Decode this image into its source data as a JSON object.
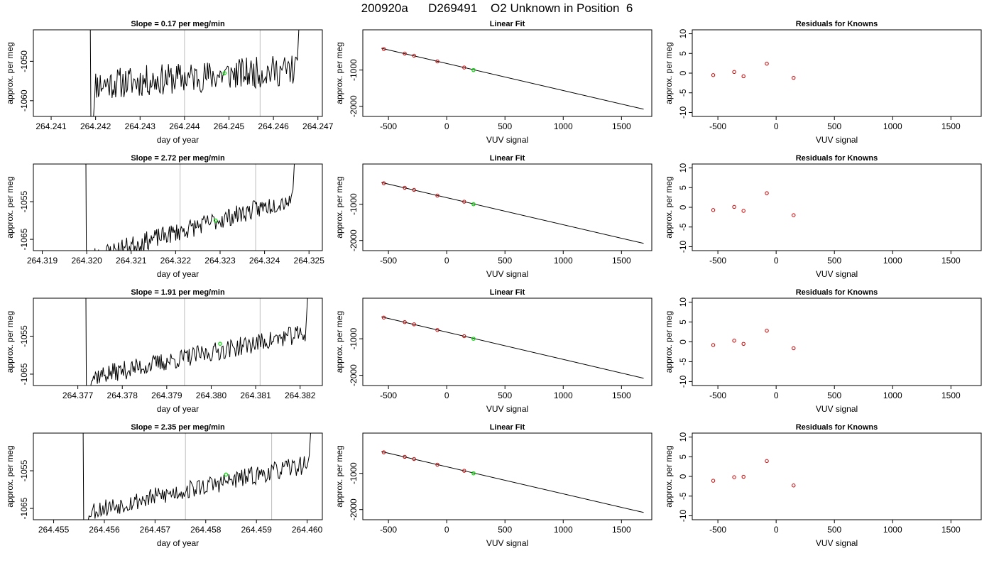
{
  "figure": {
    "title": "200920a      D269491    O2 Unknown in Position  6"
  },
  "chart_data": [
    {
      "type": "line",
      "panel": "timeseries",
      "row": 0,
      "title": "Slope =  0.17  per meg/min",
      "xlabel": "day of year",
      "ylabel": "approx. per meg",
      "xlim": [
        264.2406,
        264.2471
      ],
      "ylim": [
        -1064,
        -1042
      ],
      "xticks": [
        "264.241",
        "264.242",
        "264.243",
        "264.244",
        "264.245",
        "264.246",
        "264.247"
      ],
      "yticks": [
        "-1060",
        "-1050"
      ],
      "vlines": [
        264.244,
        264.2457
      ],
      "series": [
        {
          "seed": 11,
          "start_day": 264.2419,
          "end_day": 264.2466,
          "drop_value": -1075,
          "base_start": -1056,
          "base_end": -1052,
          "noise": 4,
          "end_value": -1035
        }
      ],
      "mean_point": {
        "x": 264.2449,
        "y": -1053
      }
    },
    {
      "type": "scatter",
      "panel": "linear-fit",
      "row": 0,
      "title": "Linear Fit",
      "xlabel": "VUV signal",
      "ylabel": "approx. per meg",
      "xlim": [
        -720,
        1760
      ],
      "ylim": [
        -2280,
        110
      ],
      "xticks": [
        "-500",
        "0",
        "500",
        "1000",
        "1500"
      ],
      "yticks": [
        "-1000",
        "-2000"
      ],
      "fit_line": {
        "x": [
          -560,
          1690
        ],
        "y": [
          -400,
          -2080
        ]
      },
      "knowns": {
        "x": [
          -540,
          -360,
          -280,
          -80,
          150
        ],
        "y": [
          -420,
          -545,
          -605,
          -760,
          -930
        ]
      },
      "unknown": {
        "x": 230,
        "y": -1000
      }
    },
    {
      "type": "scatter",
      "panel": "residuals",
      "row": 0,
      "title": "Residuals for Knowns",
      "xlabel": "VUV signal",
      "ylabel": "approx. per meg",
      "xlim": [
        -720,
        1760
      ],
      "ylim": [
        -11,
        11
      ],
      "xticks": [
        "-500",
        "0",
        "500",
        "1000",
        "1500"
      ],
      "yticks": [
        "-10",
        "-5",
        "0",
        "5",
        "10"
      ],
      "points": {
        "x": [
          -540,
          -360,
          -280,
          -80,
          150
        ],
        "y": [
          -0.5,
          0.3,
          -0.8,
          2.4,
          -1.2
        ]
      }
    },
    {
      "type": "line",
      "panel": "timeseries",
      "row": 1,
      "title": "Slope =  2.72  per meg/min",
      "xlabel": "day of year",
      "ylabel": "approx. per meg",
      "xlim": [
        264.3188,
        264.3253
      ],
      "ylim": [
        -1068,
        -1045
      ],
      "xticks": [
        "264.319",
        "264.320",
        "264.321",
        "264.322",
        "264.323",
        "264.324",
        "264.325"
      ],
      "yticks": [
        "-1065",
        "-1055"
      ],
      "vlines": [
        264.3221,
        264.3238
      ],
      "series": [
        {
          "seed": 23,
          "start_day": 264.32,
          "end_day": 264.3247,
          "drop_value": -1085,
          "base_start": -1070,
          "base_end": -1054,
          "noise": 2.5,
          "end_value": -1038
        }
      ],
      "mean_point": {
        "x": 264.3229,
        "y": -1060
      }
    },
    {
      "type": "scatter",
      "panel": "linear-fit",
      "row": 1,
      "title": "Linear Fit",
      "xlabel": "VUV signal",
      "ylabel": "approx. per meg",
      "xlim": [
        -720,
        1760
      ],
      "ylim": [
        -2280,
        110
      ],
      "xticks": [
        "-500",
        "0",
        "500",
        "1000",
        "1500"
      ],
      "yticks": [
        "-1000",
        "-2000"
      ],
      "fit_line": {
        "x": [
          -560,
          1690
        ],
        "y": [
          -400,
          -2080
        ]
      },
      "knowns": {
        "x": [
          -540,
          -360,
          -280,
          -80,
          150
        ],
        "y": [
          -420,
          -545,
          -605,
          -760,
          -930
        ]
      },
      "unknown": {
        "x": 230,
        "y": -1000
      }
    },
    {
      "type": "scatter",
      "panel": "residuals",
      "row": 1,
      "title": "Residuals for Knowns",
      "xlabel": "VUV signal",
      "ylabel": "approx. per meg",
      "xlim": [
        -720,
        1760
      ],
      "ylim": [
        -11,
        11
      ],
      "xticks": [
        "-500",
        "0",
        "500",
        "1000",
        "1500"
      ],
      "yticks": [
        "-10",
        "-5",
        "0",
        "5",
        "10"
      ],
      "points": {
        "x": [
          -540,
          -360,
          -280,
          -80,
          150
        ],
        "y": [
          -0.7,
          0.1,
          -0.9,
          3.6,
          -2.0
        ]
      }
    },
    {
      "type": "line",
      "panel": "timeseries",
      "row": 2,
      "title": "Slope =  1.91  per meg/min",
      "xlabel": "day of year",
      "ylabel": "approx. per meg",
      "xlim": [
        264.376,
        264.3825
      ],
      "ylim": [
        -1068,
        -1045
      ],
      "xticks": [
        "264.377",
        "264.378",
        "264.379",
        "264.380",
        "264.381",
        "264.382"
      ],
      "yticks": [
        "-1065",
        "-1055"
      ],
      "vlines": [
        264.3794,
        264.3811
      ],
      "series": [
        {
          "seed": 37,
          "start_day": 264.3772,
          "end_day": 264.3822,
          "drop_value": -1085,
          "base_start": -1066,
          "base_end": -1054,
          "noise": 2.5,
          "end_value": -1038
        }
      ],
      "mean_point": {
        "x": 264.3802,
        "y": -1057
      }
    },
    {
      "type": "scatter",
      "panel": "linear-fit",
      "row": 2,
      "title": "Linear Fit",
      "xlabel": "VUV signal",
      "ylabel": "approx. per meg",
      "xlim": [
        -720,
        1760
      ],
      "ylim": [
        -2280,
        110
      ],
      "xticks": [
        "-500",
        "0",
        "500",
        "1000",
        "1500"
      ],
      "yticks": [
        "-1000",
        "-2000"
      ],
      "fit_line": {
        "x": [
          -560,
          1690
        ],
        "y": [
          -400,
          -2080
        ]
      },
      "knowns": {
        "x": [
          -540,
          -360,
          -280,
          -80,
          150
        ],
        "y": [
          -420,
          -545,
          -605,
          -760,
          -930
        ]
      },
      "unknown": {
        "x": 230,
        "y": -1000
      }
    },
    {
      "type": "scatter",
      "panel": "residuals",
      "row": 2,
      "title": "Residuals for Knowns",
      "xlabel": "VUV signal",
      "ylabel": "approx. per meg",
      "xlim": [
        -720,
        1760
      ],
      "ylim": [
        -11,
        11
      ],
      "xticks": [
        "-500",
        "0",
        "500",
        "1000",
        "1500"
      ],
      "yticks": [
        "-10",
        "-5",
        "0",
        "5",
        "10"
      ],
      "points": {
        "x": [
          -540,
          -360,
          -280,
          -80,
          150
        ],
        "y": [
          -0.8,
          0.3,
          -0.5,
          2.8,
          -1.6
        ]
      }
    },
    {
      "type": "line",
      "panel": "timeseries",
      "row": 3,
      "title": "Slope =  2.35  per meg/min",
      "xlabel": "day of year",
      "ylabel": "approx. per meg",
      "xlim": [
        264.4546,
        264.4603
      ],
      "ylim": [
        -1068,
        -1045
      ],
      "xticks": [
        "264.455",
        "264.456",
        "264.457",
        "264.458",
        "264.459",
        "264.460"
      ],
      "yticks": [
        "-1065",
        "-1055"
      ],
      "vlines": [
        264.4576,
        264.4593
      ],
      "series": [
        {
          "seed": 53,
          "start_day": 264.4556,
          "end_day": 264.4601,
          "drop_value": -1085,
          "base_start": -1066,
          "base_end": -1053,
          "noise": 2.5,
          "end_value": -1038
        }
      ],
      "mean_point": {
        "x": 264.4584,
        "y": -1056
      }
    },
    {
      "type": "scatter",
      "panel": "linear-fit",
      "row": 3,
      "title": "Linear Fit",
      "xlabel": "VUV signal",
      "ylabel": "approx. per meg",
      "xlim": [
        -720,
        1760
      ],
      "ylim": [
        -2280,
        110
      ],
      "xticks": [
        "-500",
        "0",
        "500",
        "1000",
        "1500"
      ],
      "yticks": [
        "-1000",
        "-2000"
      ],
      "fit_line": {
        "x": [
          -560,
          1690
        ],
        "y": [
          -400,
          -2080
        ]
      },
      "knowns": {
        "x": [
          -540,
          -360,
          -280,
          -80,
          150
        ],
        "y": [
          -420,
          -545,
          -605,
          -760,
          -930
        ]
      },
      "unknown": {
        "x": 230,
        "y": -1000
      }
    },
    {
      "type": "scatter",
      "panel": "residuals",
      "row": 3,
      "title": "Residuals for Knowns",
      "xlabel": "VUV signal",
      "ylabel": "approx. per meg",
      "xlim": [
        -720,
        1760
      ],
      "ylim": [
        -11,
        11
      ],
      "xticks": [
        "-500",
        "0",
        "500",
        "1000",
        "1500"
      ],
      "yticks": [
        "-10",
        "-5",
        "0",
        "5",
        "10"
      ],
      "points": {
        "x": [
          -540,
          -360,
          -280,
          -80,
          150
        ],
        "y": [
          -1.1,
          -0.2,
          -0.1,
          3.9,
          -2.3
        ]
      }
    }
  ],
  "colors": {
    "line": "#000000",
    "vline": "#bdbdbd",
    "known_points": "#cc0000",
    "unknown_point": "#00dd00"
  }
}
